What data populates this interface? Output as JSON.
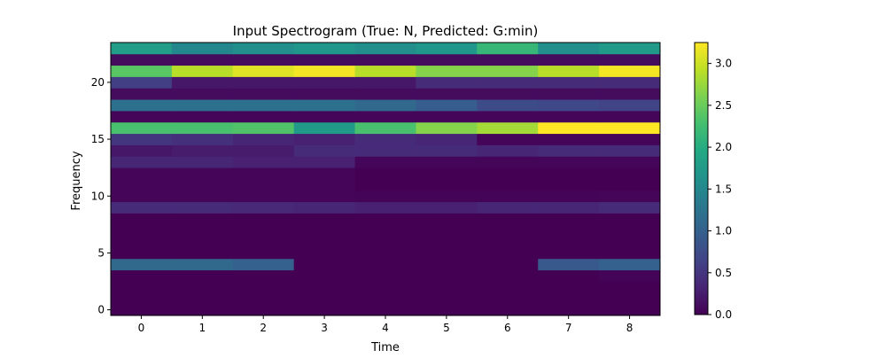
{
  "chart_data": {
    "type": "heatmap",
    "title": "Input Spectrogram (True: N, Predicted: G:min)",
    "xlabel": "Time",
    "ylabel": "Frequency",
    "colormap": "viridis",
    "x": [
      0,
      1,
      2,
      3,
      4,
      5,
      6,
      7,
      8
    ],
    "y": [
      0,
      1,
      2,
      3,
      4,
      5,
      6,
      7,
      8,
      9,
      10,
      11,
      12,
      13,
      14,
      15,
      16,
      17,
      18,
      19,
      20,
      21,
      22,
      23
    ],
    "x_ticks": [
      "0",
      "1",
      "2",
      "3",
      "4",
      "5",
      "6",
      "7",
      "8"
    ],
    "y_ticks": [
      "0",
      "5",
      "10",
      "15",
      "20"
    ],
    "xlim": [
      -0.5,
      8.5
    ],
    "ylim": [
      -0.5,
      23.5
    ],
    "colorbar": {
      "vmin": 0.0,
      "vmax": 3.25,
      "ticks": [
        "0.0",
        "0.5",
        "1.0",
        "1.5",
        "2.0",
        "2.5",
        "3.0"
      ]
    },
    "values": [
      [
        0.0,
        0.0,
        0.0,
        0.0,
        0.0,
        0.0,
        0.0,
        0.0,
        0.0
      ],
      [
        0.0,
        0.0,
        0.0,
        0.0,
        0.0,
        0.0,
        0.0,
        0.0,
        0.0
      ],
      [
        0.0,
        0.0,
        0.0,
        0.0,
        0.0,
        0.0,
        0.0,
        0.0,
        0.0
      ],
      [
        0.0,
        0.0,
        0.0,
        0.0,
        0.0,
        0.0,
        0.0,
        0.0,
        0.03
      ],
      [
        1.1,
        1.1,
        1.0,
        0.0,
        0.0,
        0.0,
        0.0,
        0.9,
        1.0
      ],
      [
        0.0,
        0.0,
        0.0,
        0.0,
        0.0,
        0.0,
        0.0,
        0.0,
        0.0
      ],
      [
        0.0,
        0.0,
        0.0,
        0.0,
        0.0,
        0.0,
        0.0,
        0.0,
        0.0
      ],
      [
        0.0,
        0.0,
        0.0,
        0.0,
        0.0,
        0.0,
        0.0,
        0.0,
        0.0
      ],
      [
        0.0,
        0.0,
        0.0,
        0.0,
        0.0,
        0.0,
        0.0,
        0.0,
        0.0
      ],
      [
        0.4,
        0.4,
        0.38,
        0.35,
        0.3,
        0.3,
        0.35,
        0.35,
        0.4
      ],
      [
        0.05,
        0.05,
        0.05,
        0.05,
        0.03,
        0.03,
        0.03,
        0.03,
        0.05
      ],
      [
        0.05,
        0.05,
        0.05,
        0.05,
        0.0,
        0.0,
        0.0,
        0.0,
        0.0
      ],
      [
        0.05,
        0.05,
        0.05,
        0.05,
        0.0,
        0.0,
        0.0,
        0.0,
        0.0
      ],
      [
        0.35,
        0.35,
        0.3,
        0.3,
        0.05,
        0.05,
        0.05,
        0.05,
        0.05
      ],
      [
        0.2,
        0.25,
        0.25,
        0.4,
        0.4,
        0.4,
        0.35,
        0.4,
        0.4
      ],
      [
        0.5,
        0.45,
        0.35,
        0.3,
        0.4,
        0.35,
        0.05,
        0.05,
        0.05
      ],
      [
        2.3,
        2.3,
        2.35,
        1.75,
        2.3,
        2.65,
        2.8,
        3.25,
        3.25
      ],
      [
        0.05,
        0.05,
        0.05,
        0.05,
        0.05,
        0.05,
        0.05,
        0.05,
        0.05
      ],
      [
        1.2,
        1.2,
        1.2,
        1.2,
        1.1,
        0.95,
        0.75,
        0.7,
        0.65
      ],
      [
        0.1,
        0.1,
        0.1,
        0.1,
        0.1,
        0.1,
        0.1,
        0.1,
        0.1
      ],
      [
        0.6,
        0.2,
        0.2,
        0.2,
        0.2,
        0.4,
        0.4,
        0.4,
        0.4
      ],
      [
        2.4,
        2.9,
        3.1,
        3.2,
        2.9,
        2.65,
        2.65,
        2.9,
        3.2
      ],
      [
        0.1,
        0.1,
        0.1,
        0.1,
        0.1,
        0.1,
        0.1,
        0.1,
        0.1
      ],
      [
        1.8,
        1.5,
        1.6,
        1.7,
        1.6,
        1.7,
        2.15,
        1.6,
        1.75
      ]
    ]
  }
}
